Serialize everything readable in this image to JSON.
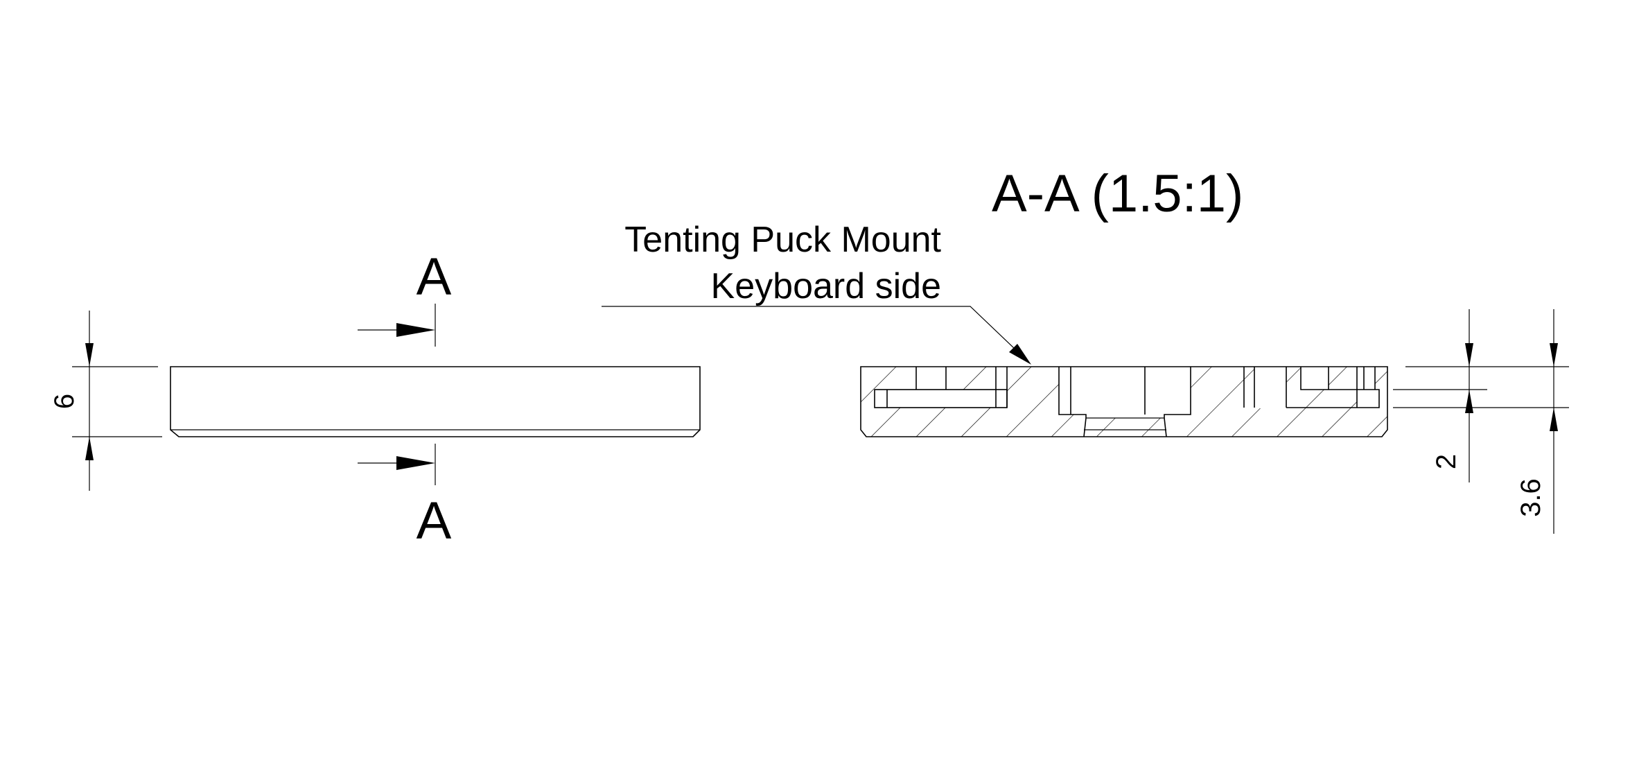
{
  "drawing": {
    "section_title": "A-A (1.5:1)",
    "label_line1": "Tenting Puck Mount",
    "label_line2": "Keyboard side",
    "section_marker_top": "A",
    "section_marker_bottom": "A",
    "dim_thickness": "6",
    "dim_step": "2",
    "dim_recess": "3.6"
  },
  "colors": {
    "ink": "#000000",
    "paper": "#ffffff"
  }
}
